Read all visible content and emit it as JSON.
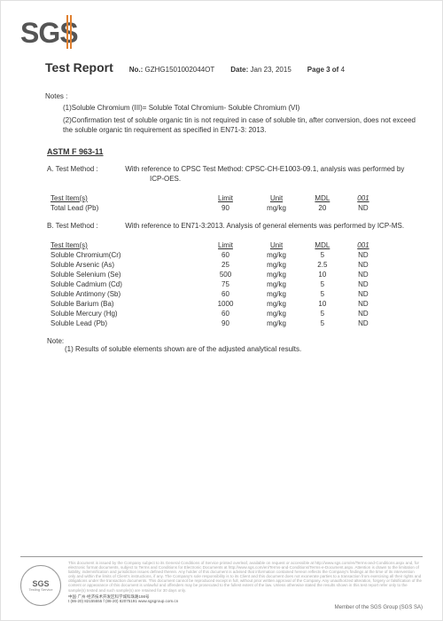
{
  "logo": "SGS",
  "header": {
    "title": "Test Report",
    "no_label": "No.:",
    "no": "GZHG1501002044OT",
    "date_label": "Date:",
    "date": "Jan 23, 2015",
    "page_label": "Page 3 of",
    "page_total": " 4"
  },
  "notes_head": "Notes :",
  "notes": {
    "n1": "(1)Soluble Chromium (III)= Soluble Total Chromium- Soluble Chromium (VI)",
    "n2": "(2)Confirmation test of soluble organic tin is not required in case of soluble tin, after conversion, does not exceed the soluble organic tin requirement as specified in EN71-3: 2013."
  },
  "astm": "ASTM F 963-11",
  "methodA": {
    "label": "A. Test Method :",
    "text1": "With reference to CPSC Test Method: CPSC-CH-E1003-09.1, analysis was performed by",
    "text2": "ICP-OES."
  },
  "tableA": {
    "headers": {
      "item": "Test Item(s)",
      "limit": "Limit",
      "unit": "Unit",
      "mdl": "MDL",
      "res": "001"
    },
    "rows": [
      {
        "item": "Total Lead (Pb)",
        "limit": "90",
        "unit": "mg/kg",
        "mdl": "20",
        "res": "ND"
      }
    ]
  },
  "methodB": {
    "label": "B. Test Method :",
    "text": "With reference to EN71-3:2013. Analysis of general elements was performed by ICP-MS."
  },
  "tableB": {
    "headers": {
      "item": "Test Item(s)",
      "limit": "Limit",
      "unit": "Unit",
      "mdl": "MDL",
      "res": "001"
    },
    "rows": [
      {
        "item": "Soluble Chromium(Cr)",
        "limit": "60",
        "unit": "mg/kg",
        "mdl": "5",
        "res": "ND"
      },
      {
        "item": "Soluble Arsenic (As)",
        "limit": "25",
        "unit": "mg/kg",
        "mdl": "2.5",
        "res": "ND"
      },
      {
        "item": "Soluble Selenium (Se)",
        "limit": "500",
        "unit": "mg/kg",
        "mdl": "10",
        "res": "ND"
      },
      {
        "item": "Soluble Cadmium (Cd)",
        "limit": "75",
        "unit": "mg/kg",
        "mdl": "5",
        "res": "ND"
      },
      {
        "item": "Soluble Antimony (Sb)",
        "limit": "60",
        "unit": "mg/kg",
        "mdl": "5",
        "res": "ND"
      },
      {
        "item": "Soluble Barium (Ba)",
        "limit": "1000",
        "unit": "mg/kg",
        "mdl": "10",
        "res": "ND"
      },
      {
        "item": "Soluble Mercury (Hg)",
        "limit": "60",
        "unit": "mg/kg",
        "mdl": "5",
        "res": "ND"
      },
      {
        "item": "Soluble Lead (Pb)",
        "limit": "90",
        "unit": "mg/kg",
        "mdl": "5",
        "res": "ND"
      }
    ]
  },
  "note2_head": "Note:",
  "note2": "(1) Results of soluble elements shown are of the adjusted analytical results.",
  "footer": {
    "seal_logo": "SGS",
    "seal_text": "Testing Service",
    "disclaimer": "This document is issued by the Company subject to its General Conditions of Service printed overleaf, available on request or accessible at http://www.sgs.com/en/Terms-and-Conditions.aspx and, for electronic format documents, subject to Terms and Conditions for Electronic Documents at http://www.sgs.com/en/Terms-and-Conditions/Terms-e-Document.aspx. Attention is drawn to the limitation of liability, indemnification and jurisdiction issues defined therein. Any holder of this document is advised that information contained hereon reflects the Company's findings at the time of its intervention only and within the limits of Client's instructions, if any. The Company's sole responsibility is to its Client and this document does not exonerate parties to a transaction from exercising all their rights and obligations under the transaction documents. This document cannot be reproduced except in full, without prior written approval of the Company. Any unauthorized alteration, forgery or falsification of the content or appearance of this document is unlawful and offenders may be prosecuted to the fullest extent of the law. Unless otherwise stated the results shown in this test report refer only to the sample(s) tested and such sample(s) are retained for 30 days only.",
    "address": "中国·广州·经济技术开发区科学城科珠路198号",
    "phones": "t (86-20) 82155555   f (86-20) 82075191   www.sgsgroup.com.cn",
    "member": "Member of the SGS Group (SGS SA)"
  }
}
